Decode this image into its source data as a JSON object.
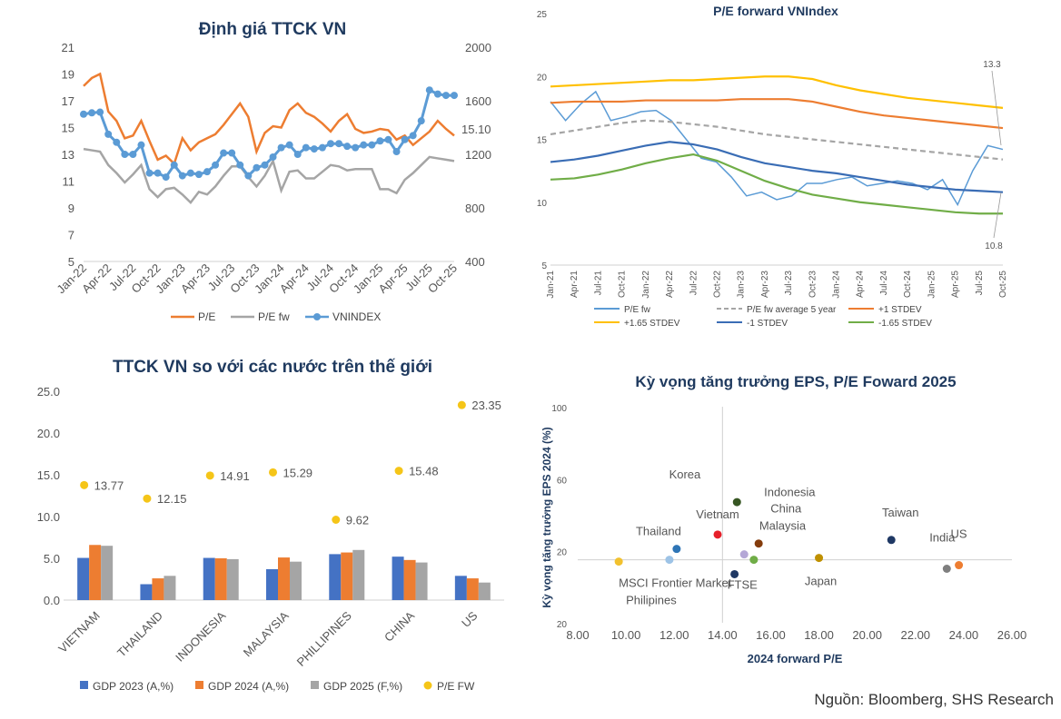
{
  "source": "Nguồn: Bloomberg, SHS Research",
  "colors": {
    "pe": "#ED7D31",
    "pefw": "#A5A5A5",
    "vnindex": "#5B9BD5",
    "g23": "#4472C4",
    "g24": "#ED7D31",
    "g25": "#A5A5A5",
    "pefw_dot": "#F5C518"
  },
  "chart_data": [
    {
      "type": "line",
      "title": "Định giá TTCK VN",
      "x_ticks": [
        "Jan-22",
        "Apr-22",
        "Jul-22",
        "Oct-22",
        "Jan-23",
        "Apr-23",
        "Jul-23",
        "Oct-23",
        "Jan-24",
        "Apr-24",
        "Jul-24",
        "Oct-24",
        "Jan-25",
        "Apr-25",
        "Jul-25",
        "Oct-25"
      ],
      "ylim": [
        5,
        21
      ],
      "y_ticks": [
        5,
        7,
        9,
        11,
        13,
        15,
        17,
        19,
        21
      ],
      "y2lim": [
        400,
        2000
      ],
      "y2_ticks": [
        400,
        800,
        1200,
        1600,
        2000
      ],
      "annotation": "15.10",
      "legend": [
        "P/E",
        "P/E fw",
        "VNINDEX"
      ],
      "series": [
        {
          "name": "P/E",
          "axis": "left",
          "values": [
            18.1,
            18.7,
            19.0,
            16.2,
            15.5,
            14.2,
            14.4,
            15.5,
            14.0,
            12.6,
            12.9,
            12.3,
            14.2,
            13.3,
            13.9,
            14.2,
            14.5,
            15.2,
            16.0,
            16.8,
            15.8,
            13.2,
            14.6,
            15.1,
            15.0,
            16.3,
            16.8,
            16.1,
            15.8,
            15.3,
            14.7,
            15.5,
            16.0,
            14.9,
            14.6,
            14.7,
            14.9,
            14.8,
            14.1,
            14.4,
            13.7,
            14.2,
            14.7,
            15.5,
            14.9,
            14.4
          ]
        },
        {
          "name": "P/E fw",
          "axis": "left",
          "values": [
            13.4,
            13.3,
            13.2,
            12.2,
            11.6,
            10.9,
            11.5,
            12.2,
            10.4,
            9.8,
            10.4,
            10.5,
            10.0,
            9.4,
            10.2,
            10.0,
            10.6,
            11.4,
            12.1,
            12.1,
            11.3,
            10.6,
            11.4,
            12.5,
            10.3,
            11.7,
            11.8,
            11.2,
            11.2,
            11.7,
            12.2,
            12.1,
            11.8,
            11.9,
            11.9,
            11.9,
            10.4,
            10.4,
            10.1,
            11.1,
            11.6,
            12.2,
            12.8,
            12.7,
            12.6,
            12.5
          ]
        },
        {
          "name": "VNINDEX",
          "axis": "right",
          "values": [
            1500,
            1510,
            1515,
            1350,
            1290,
            1200,
            1200,
            1270,
            1060,
            1060,
            1030,
            1120,
            1040,
            1060,
            1050,
            1070,
            1120,
            1210,
            1210,
            1120,
            1040,
            1100,
            1120,
            1180,
            1250,
            1270,
            1200,
            1250,
            1240,
            1250,
            1280,
            1280,
            1260,
            1250,
            1270,
            1270,
            1300,
            1310,
            1220,
            1310,
            1340,
            1450,
            1680,
            1650,
            1640,
            1640
          ]
        }
      ]
    },
    {
      "type": "line",
      "title": "P/E forward VNIndex",
      "x_ticks": [
        "Jan-21",
        "Apr-21",
        "Jul-21",
        "Oct-21",
        "Jan-22",
        "Apr-22",
        "Jul-22",
        "Oct-22",
        "Jan-23",
        "Apr-23",
        "Jul-23",
        "Oct-23",
        "Jan-24",
        "Apr-24",
        "Jul-24",
        "Oct-24",
        "Jan-25",
        "Apr-25",
        "Jul-25",
        "Oct-25"
      ],
      "ylim": [
        5,
        25
      ],
      "y_ticks": [
        5,
        10,
        15,
        20,
        25
      ],
      "annotations": [
        "13.3",
        "10.8"
      ],
      "legend": [
        "P/E fw",
        "P/E fw average 5 year",
        "+1 STDEV",
        "+1.65 STDEV",
        "-1 STDEV",
        "-1.65 STDEV"
      ],
      "series": [
        {
          "name": "P/E fw",
          "values": [
            18.0,
            16.5,
            17.8,
            18.8,
            16.5,
            16.8,
            17.2,
            17.3,
            16.5,
            15.0,
            13.5,
            13.2,
            12.0,
            10.5,
            10.8,
            10.2,
            10.5,
            11.5,
            11.5,
            11.8,
            12.0,
            11.3,
            11.5,
            11.7,
            11.5,
            11.0,
            11.8,
            9.8,
            12.5,
            14.5,
            14.2
          ]
        },
        {
          "name": "P/E fw average 5 year",
          "values": [
            15.4,
            15.7,
            16.0,
            16.3,
            16.5,
            16.4,
            16.2,
            16.0,
            15.7,
            15.4,
            15.2,
            15.0,
            14.8,
            14.6,
            14.4,
            14.2,
            14.0,
            13.8,
            13.6,
            13.4
          ]
        },
        {
          "name": "+1 STDEV",
          "values": [
            17.9,
            18.0,
            18.0,
            18.0,
            18.1,
            18.1,
            18.1,
            18.1,
            18.2,
            18.2,
            18.2,
            18.0,
            17.6,
            17.2,
            16.9,
            16.7,
            16.5,
            16.3,
            16.1,
            15.9
          ]
        },
        {
          "name": "+1.65 STDEV",
          "values": [
            19.2,
            19.3,
            19.4,
            19.5,
            19.6,
            19.7,
            19.7,
            19.8,
            19.9,
            20.0,
            20.0,
            19.8,
            19.3,
            18.9,
            18.6,
            18.3,
            18.1,
            17.9,
            17.7,
            17.5
          ]
        },
        {
          "name": "-1 STDEV",
          "values": [
            13.2,
            13.4,
            13.7,
            14.1,
            14.5,
            14.8,
            14.6,
            14.2,
            13.6,
            13.1,
            12.8,
            12.5,
            12.3,
            12.0,
            11.7,
            11.4,
            11.2,
            11.0,
            10.9,
            10.8
          ]
        },
        {
          "name": "-1.65 STDEV",
          "values": [
            11.8,
            11.9,
            12.2,
            12.6,
            13.1,
            13.5,
            13.8,
            13.3,
            12.5,
            11.7,
            11.1,
            10.6,
            10.3,
            10.0,
            9.8,
            9.6,
            9.4,
            9.2,
            9.1,
            9.1
          ]
        }
      ]
    },
    {
      "type": "bar",
      "title": "TTCK VN so với các nước trên thế giới",
      "categories": [
        "VIETNAM",
        "THAILAND",
        "INDONESIA",
        "MALAYSIA",
        "PHILLIPINES",
        "CHINA",
        "US"
      ],
      "ylim": [
        0,
        25
      ],
      "y_ticks": [
        "0.0",
        "5.0",
        "10.0",
        "15.0",
        "20.0",
        "25.0"
      ],
      "legend": [
        "GDP 2023 (A,%)",
        "GDP 2024 (A,%)",
        "GDP 2025 (F,%)",
        "P/E FW"
      ],
      "series": [
        {
          "name": "GDP 2023 (A,%)",
          "values": [
            5.05,
            1.9,
            5.05,
            3.7,
            5.5,
            5.2,
            2.9
          ]
        },
        {
          "name": "GDP 2024 (A,%)",
          "values": [
            6.6,
            2.6,
            5.0,
            5.1,
            5.7,
            4.8,
            2.6
          ]
        },
        {
          "name": "GDP 2025 (F,%)",
          "values": [
            6.5,
            2.9,
            4.9,
            4.6,
            6.0,
            4.5,
            2.1
          ]
        },
        {
          "name": "P/E FW",
          "values": [
            13.77,
            12.15,
            14.91,
            15.29,
            9.62,
            15.48,
            23.35
          ],
          "labels": [
            "13.77",
            "12.15",
            "14.91",
            "15.29",
            "9.62",
            "15.48",
            "23.35"
          ]
        }
      ]
    },
    {
      "type": "scatter",
      "title": "Kỳ vọng tăng trưởng EPS, P/E Foward 2025",
      "xlabel": "2024 forward P/E",
      "ylabel": "Kỳ vọng tăng trưởng EPS 2024 (%)",
      "xlim": [
        8,
        26
      ],
      "x_ticks": [
        "8.00",
        "10.00",
        "12.00",
        "14.00",
        "16.00",
        "18.00",
        "20.00",
        "22.00",
        "24.00",
        "26.00"
      ],
      "ylim": [
        -20,
        100
      ],
      "y_ticks": [
        "100",
        "60",
        "20",
        "20"
      ],
      "points": [
        {
          "name": "Korea",
          "x": 14.6,
          "y": 47,
          "color": "#375623"
        },
        {
          "name": "Vietnam",
          "x": 13.8,
          "y": 29,
          "color": "#E6202A"
        },
        {
          "name": "China",
          "x": 14.9,
          "y": 18,
          "color": "#B4A7D6"
        },
        {
          "name": "Indonesia",
          "x": 15.5,
          "y": 24,
          "color": "#843C0C"
        },
        {
          "name": "Malaysia",
          "x": 15.3,
          "y": 15,
          "color": "#70AD47"
        },
        {
          "name": "Thailand",
          "x": 12.1,
          "y": 21,
          "color": "#2E75B6"
        },
        {
          "name": "MSCI Frontier Market",
          "x": 9.7,
          "y": 14,
          "color": "#F2C12E"
        },
        {
          "name": "Philipines",
          "x": 11.8,
          "y": 15,
          "color": "#9DC3E6"
        },
        {
          "name": "FTSE",
          "x": 14.5,
          "y": 7,
          "color": "#1F3864"
        },
        {
          "name": "Japan",
          "x": 18.0,
          "y": 16,
          "color": "#BF9000"
        },
        {
          "name": "Taiwan",
          "x": 21.0,
          "y": 26,
          "color": "#1F3864"
        },
        {
          "name": "India",
          "x": 23.3,
          "y": 10,
          "color": "#7F7F7F"
        },
        {
          "name": "US",
          "x": 23.8,
          "y": 12,
          "color": "#ED7D31"
        }
      ]
    }
  ]
}
